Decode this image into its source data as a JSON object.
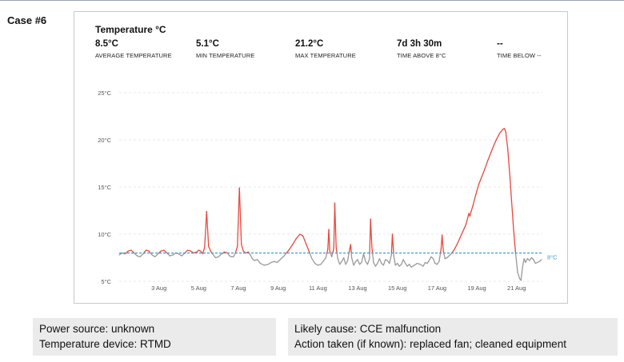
{
  "case_label": "Case #6",
  "panel": {
    "title": "Temperature °C",
    "stats": [
      {
        "value": "8.5°C",
        "label": "AVERAGE TEMPERATURE"
      },
      {
        "value": "5.1°C",
        "label": "MIN TEMPERATURE"
      },
      {
        "value": "21.2°C",
        "label": "MAX TEMPERATURE"
      },
      {
        "value": "7d 3h 30m",
        "label": "TIME ABOVE 8°C"
      },
      {
        "value": "--",
        "label": "TIME BELOW --"
      }
    ]
  },
  "chart_data": {
    "type": "line",
    "title": "Temperature °C",
    "xlabel": "",
    "ylabel": "",
    "x_unit": "day of August",
    "xlim": [
      1,
      21.6
    ],
    "ylim": [
      5,
      25
    ],
    "x_ticks": [
      {
        "day": 3,
        "label": "3 Aug"
      },
      {
        "day": 5,
        "label": "5 Aug"
      },
      {
        "day": 7,
        "label": "7 Aug"
      },
      {
        "day": 9,
        "label": "9 Aug"
      },
      {
        "day": 11,
        "label": "11 Aug"
      },
      {
        "day": 13,
        "label": "13 Aug"
      },
      {
        "day": 15,
        "label": "15 Aug"
      },
      {
        "day": 17,
        "label": "17 Aug"
      },
      {
        "day": 19,
        "label": "19 Aug"
      },
      {
        "day": 21,
        "label": "21 Aug"
      }
    ],
    "y_ticks": [
      {
        "value": 5,
        "label": "5°C"
      },
      {
        "value": 10,
        "label": "10°C"
      },
      {
        "value": 15,
        "label": "15°C"
      },
      {
        "value": 20,
        "label": "20°C"
      },
      {
        "value": 25,
        "label": "25°C"
      }
    ],
    "grid": true,
    "threshold": {
      "value": 8,
      "label": "8°C",
      "color": "#3a9fd6"
    },
    "above_color": "#e8483f",
    "below_color": "#9a9a9a",
    "series": [
      {
        "points": [
          [
            1.0,
            7.8
          ],
          [
            1.15,
            8.0
          ],
          [
            1.3,
            7.9
          ],
          [
            1.45,
            8.2
          ],
          [
            1.6,
            8.3
          ],
          [
            1.75,
            8.0
          ],
          [
            1.9,
            7.7
          ],
          [
            2.05,
            7.6
          ],
          [
            2.2,
            7.9
          ],
          [
            2.35,
            8.3
          ],
          [
            2.5,
            8.2
          ],
          [
            2.65,
            7.8
          ],
          [
            2.8,
            7.6
          ],
          [
            2.95,
            7.9
          ],
          [
            3.1,
            8.2
          ],
          [
            3.25,
            8.3
          ],
          [
            3.4,
            8.0
          ],
          [
            3.55,
            7.7
          ],
          [
            3.7,
            7.8
          ],
          [
            3.85,
            8.0
          ],
          [
            4.0,
            7.9
          ],
          [
            4.15,
            7.7
          ],
          [
            4.3,
            8.0
          ],
          [
            4.45,
            8.3
          ],
          [
            4.6,
            8.2
          ],
          [
            4.75,
            8.0
          ],
          [
            4.9,
            8.1
          ],
          [
            5.0,
            8.3
          ],
          [
            5.1,
            8.2
          ],
          [
            5.2,
            7.9
          ],
          [
            5.3,
            8.6
          ],
          [
            5.4,
            12.4
          ],
          [
            5.5,
            8.7
          ],
          [
            5.6,
            8.2
          ],
          [
            5.7,
            7.9
          ],
          [
            5.85,
            7.5
          ],
          [
            6.0,
            7.6
          ],
          [
            6.15,
            7.9
          ],
          [
            6.3,
            8.1
          ],
          [
            6.45,
            8.0
          ],
          [
            6.55,
            7.7
          ],
          [
            6.65,
            7.6
          ],
          [
            6.75,
            7.6
          ],
          [
            6.85,
            8.0
          ],
          [
            6.95,
            8.7
          ],
          [
            7.05,
            14.9
          ],
          [
            7.15,
            8.9
          ],
          [
            7.25,
            8.2
          ],
          [
            7.35,
            8.0
          ],
          [
            7.5,
            8.1
          ],
          [
            7.6,
            7.8
          ],
          [
            7.7,
            7.4
          ],
          [
            7.8,
            7.2
          ],
          [
            7.95,
            7.3
          ],
          [
            8.1,
            6.9
          ],
          [
            8.3,
            6.7
          ],
          [
            8.5,
            6.8
          ],
          [
            8.65,
            7.0
          ],
          [
            8.8,
            7.1
          ],
          [
            8.95,
            7.0
          ],
          [
            9.1,
            7.3
          ],
          [
            9.3,
            7.7
          ],
          [
            9.5,
            8.2
          ],
          [
            9.7,
            8.8
          ],
          [
            9.9,
            9.5
          ],
          [
            10.1,
            10.0
          ],
          [
            10.25,
            9.8
          ],
          [
            10.4,
            9.0
          ],
          [
            10.55,
            8.2
          ],
          [
            10.7,
            7.4
          ],
          [
            10.85,
            6.9
          ],
          [
            11.0,
            6.7
          ],
          [
            11.15,
            6.8
          ],
          [
            11.3,
            7.2
          ],
          [
            11.4,
            7.5
          ],
          [
            11.5,
            8.4
          ],
          [
            11.55,
            10.5
          ],
          [
            11.6,
            8.2
          ],
          [
            11.7,
            7.6
          ],
          [
            11.8,
            8.5
          ],
          [
            11.85,
            13.3
          ],
          [
            11.92,
            8.6
          ],
          [
            12.0,
            7.4
          ],
          [
            12.1,
            6.8
          ],
          [
            12.2,
            7.1
          ],
          [
            12.3,
            7.5
          ],
          [
            12.4,
            6.8
          ],
          [
            12.5,
            7.2
          ],
          [
            12.6,
            8.4
          ],
          [
            12.65,
            8.9
          ],
          [
            12.7,
            7.5
          ],
          [
            12.8,
            6.7
          ],
          [
            12.9,
            7.1
          ],
          [
            13.0,
            7.3
          ],
          [
            13.1,
            6.8
          ],
          [
            13.2,
            7.0
          ],
          [
            13.3,
            7.9
          ],
          [
            13.4,
            7.1
          ],
          [
            13.5,
            6.8
          ],
          [
            13.6,
            7.4
          ],
          [
            13.65,
            11.6
          ],
          [
            13.72,
            8.6
          ],
          [
            13.8,
            7.0
          ],
          [
            13.9,
            6.6
          ],
          [
            14.0,
            6.9
          ],
          [
            14.1,
            7.4
          ],
          [
            14.2,
            6.9
          ],
          [
            14.3,
            6.7
          ],
          [
            14.4,
            7.3
          ],
          [
            14.5,
            7.2
          ],
          [
            14.6,
            6.9
          ],
          [
            14.7,
            7.8
          ],
          [
            14.75,
            10.0
          ],
          [
            14.82,
            7.7
          ],
          [
            14.9,
            6.7
          ],
          [
            15.0,
            6.9
          ],
          [
            15.1,
            6.6
          ],
          [
            15.2,
            6.8
          ],
          [
            15.3,
            7.3
          ],
          [
            15.4,
            6.9
          ],
          [
            15.5,
            6.6
          ],
          [
            15.6,
            6.8
          ],
          [
            15.7,
            6.5
          ],
          [
            15.85,
            6.7
          ],
          [
            16.0,
            6.9
          ],
          [
            16.15,
            6.8
          ],
          [
            16.3,
            6.6
          ],
          [
            16.4,
            7.0
          ],
          [
            16.5,
            6.9
          ],
          [
            16.6,
            7.2
          ],
          [
            16.7,
            7.6
          ],
          [
            16.8,
            7.4
          ],
          [
            16.9,
            6.9
          ],
          [
            17.0,
            6.8
          ],
          [
            17.1,
            7.1
          ],
          [
            17.2,
            8.4
          ],
          [
            17.25,
            9.9
          ],
          [
            17.32,
            8.1
          ],
          [
            17.4,
            7.4
          ],
          [
            17.5,
            7.5
          ],
          [
            17.6,
            7.7
          ],
          [
            17.7,
            7.9
          ],
          [
            17.85,
            8.3
          ],
          [
            18.0,
            8.9
          ],
          [
            18.15,
            9.6
          ],
          [
            18.3,
            10.3
          ],
          [
            18.45,
            11.0
          ],
          [
            18.55,
            11.8
          ],
          [
            18.6,
            12.2
          ],
          [
            18.65,
            11.9
          ],
          [
            18.7,
            12.3
          ],
          [
            18.8,
            13.0
          ],
          [
            18.95,
            14.2
          ],
          [
            19.1,
            15.3
          ],
          [
            19.25,
            16.1
          ],
          [
            19.4,
            16.9
          ],
          [
            19.55,
            17.8
          ],
          [
            19.7,
            18.6
          ],
          [
            19.85,
            19.4
          ],
          [
            20.0,
            20.1
          ],
          [
            20.15,
            20.7
          ],
          [
            20.3,
            21.1
          ],
          [
            20.38,
            21.2
          ],
          [
            20.45,
            20.9
          ],
          [
            20.55,
            19.2
          ],
          [
            20.65,
            16.5
          ],
          [
            20.75,
            13.5
          ],
          [
            20.85,
            10.5
          ],
          [
            20.95,
            8.0
          ],
          [
            21.05,
            6.0
          ],
          [
            21.15,
            5.3
          ],
          [
            21.22,
            5.1
          ],
          [
            21.3,
            6.5
          ],
          [
            21.38,
            7.4
          ],
          [
            21.45,
            7.0
          ],
          [
            21.55,
            7.4
          ],
          [
            21.65,
            7.2
          ],
          [
            21.75,
            7.5
          ],
          [
            21.85,
            7.3
          ],
          [
            21.95,
            6.9
          ],
          [
            22.05,
            7.0
          ],
          [
            22.15,
            7.1
          ],
          [
            22.25,
            7.3
          ]
        ]
      }
    ]
  },
  "notes": {
    "left": [
      "Power source: unknown",
      "Temperature device: RTMD"
    ],
    "right": [
      "Likely cause: CCE malfunction",
      "Action taken (if known): replaced fan; cleaned equipment"
    ]
  }
}
